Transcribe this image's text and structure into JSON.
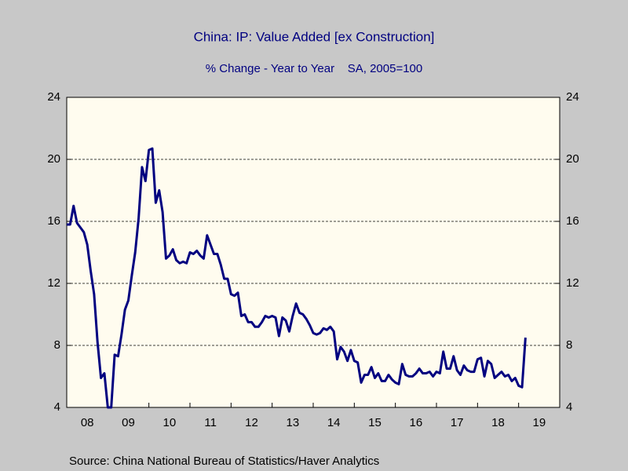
{
  "chart_data": {
    "type": "line",
    "title": "China: IP: Value Added [ex Construction]",
    "subtitle": "% Change - Year to Year    SA, 2005=100",
    "source": "Source:  China National Bureau of Statistics/Haver Analytics",
    "x": [
      "2008-01",
      "2008-02",
      "2008-03",
      "2008-04",
      "2008-05",
      "2008-06",
      "2008-07",
      "2008-08",
      "2008-09",
      "2008-10",
      "2008-11",
      "2008-12",
      "2009-01",
      "2009-02",
      "2009-03",
      "2009-04",
      "2009-05",
      "2009-06",
      "2009-07",
      "2009-08",
      "2009-09",
      "2009-10",
      "2009-11",
      "2009-12",
      "2010-01",
      "2010-02",
      "2010-03",
      "2010-04",
      "2010-05",
      "2010-06",
      "2010-07",
      "2010-08",
      "2010-09",
      "2010-10",
      "2010-11",
      "2010-12",
      "2011-01",
      "2011-02",
      "2011-03",
      "2011-04",
      "2011-05",
      "2011-06",
      "2011-07",
      "2011-08",
      "2011-09",
      "2011-10",
      "2011-11",
      "2011-12",
      "2012-01",
      "2012-02",
      "2012-03",
      "2012-04",
      "2012-05",
      "2012-06",
      "2012-07",
      "2012-08",
      "2012-09",
      "2012-10",
      "2012-11",
      "2012-12",
      "2013-01",
      "2013-02",
      "2013-03",
      "2013-04",
      "2013-05",
      "2013-06",
      "2013-07",
      "2013-08",
      "2013-09",
      "2013-10",
      "2013-11",
      "2013-12",
      "2014-01",
      "2014-02",
      "2014-03",
      "2014-04",
      "2014-05",
      "2014-06",
      "2014-07",
      "2014-08",
      "2014-09",
      "2014-10",
      "2014-11",
      "2014-12",
      "2015-01",
      "2015-02",
      "2015-03",
      "2015-04",
      "2015-05",
      "2015-06",
      "2015-07",
      "2015-08",
      "2015-09",
      "2015-10",
      "2015-11",
      "2015-12",
      "2016-01",
      "2016-02",
      "2016-03",
      "2016-04",
      "2016-05",
      "2016-06",
      "2016-07",
      "2016-08",
      "2016-09",
      "2016-10",
      "2016-11",
      "2016-12",
      "2017-01",
      "2017-02",
      "2017-03",
      "2017-04",
      "2017-05",
      "2017-06",
      "2017-07",
      "2017-08",
      "2017-09",
      "2017-10",
      "2017-11",
      "2017-12",
      "2018-01",
      "2018-02",
      "2018-03",
      "2018-04",
      "2018-05",
      "2018-06",
      "2018-07",
      "2018-08",
      "2018-09",
      "2018-10",
      "2018-11",
      "2018-12",
      "2019-01",
      "2019-02",
      "2019-03"
    ],
    "series": [
      {
        "color": "#000080",
        "values": [
          15.8,
          15.8,
          17.0,
          15.9,
          15.6,
          15.3,
          14.5,
          12.8,
          11.3,
          8.2,
          5.9,
          6.2,
          4.0,
          4.0,
          7.4,
          7.3,
          8.7,
          10.3,
          10.9,
          12.5,
          14.0,
          16.2,
          19.5,
          18.6,
          20.6,
          20.7,
          17.2,
          18.0,
          16.6,
          13.6,
          13.8,
          14.2,
          13.5,
          13.3,
          13.4,
          13.3,
          14.0,
          13.9,
          14.1,
          13.8,
          13.6,
          15.1,
          14.5,
          13.9,
          13.9,
          13.2,
          12.3,
          12.3,
          11.3,
          11.2,
          11.4,
          9.9,
          10.0,
          9.5,
          9.5,
          9.2,
          9.2,
          9.5,
          9.9,
          9.8,
          9.9,
          9.8,
          8.6,
          9.8,
          9.6,
          8.9,
          9.9,
          10.7,
          10.1,
          10.0,
          9.7,
          9.3,
          8.8,
          8.7,
          8.8,
          9.1,
          9.0,
          9.2,
          8.9,
          7.1,
          7.9,
          7.6,
          7.0,
          7.7,
          7.0,
          6.9,
          5.6,
          6.1,
          6.1,
          6.6,
          5.9,
          6.2,
          5.7,
          5.7,
          6.1,
          5.8,
          5.6,
          5.5,
          6.8,
          6.1,
          6.0,
          6.0,
          6.2,
          6.5,
          6.2,
          6.2,
          6.3,
          6.0,
          6.3,
          6.2,
          7.6,
          6.5,
          6.5,
          7.3,
          6.4,
          6.1,
          6.7,
          6.4,
          6.3,
          6.3,
          7.1,
          7.2,
          6.0,
          7.0,
          6.8,
          5.9,
          6.1,
          6.3,
          6.0,
          6.1,
          5.7,
          5.9,
          5.4,
          5.3,
          8.5
        ]
      }
    ],
    "xlim": [
      "2008-01",
      "2019-12"
    ],
    "xticks": [
      {
        "value": "2008",
        "label": "08"
      },
      {
        "value": "2009",
        "label": "09"
      },
      {
        "value": "2010",
        "label": "10"
      },
      {
        "value": "2011",
        "label": "11"
      },
      {
        "value": "2012",
        "label": "12"
      },
      {
        "value": "2013",
        "label": "13"
      },
      {
        "value": "2014",
        "label": "14"
      },
      {
        "value": "2015",
        "label": "15"
      },
      {
        "value": "2016",
        "label": "16"
      },
      {
        "value": "2017",
        "label": "17"
      },
      {
        "value": "2018",
        "label": "18"
      },
      {
        "value": "2019",
        "label": "19"
      }
    ],
    "ylim": [
      4,
      24
    ],
    "yticks": [
      4,
      8,
      12,
      16,
      20,
      24
    ],
    "y2lim": [
      4,
      24
    ],
    "y2ticks": [
      4,
      8,
      12,
      16,
      20,
      24
    ],
    "grid": true
  }
}
